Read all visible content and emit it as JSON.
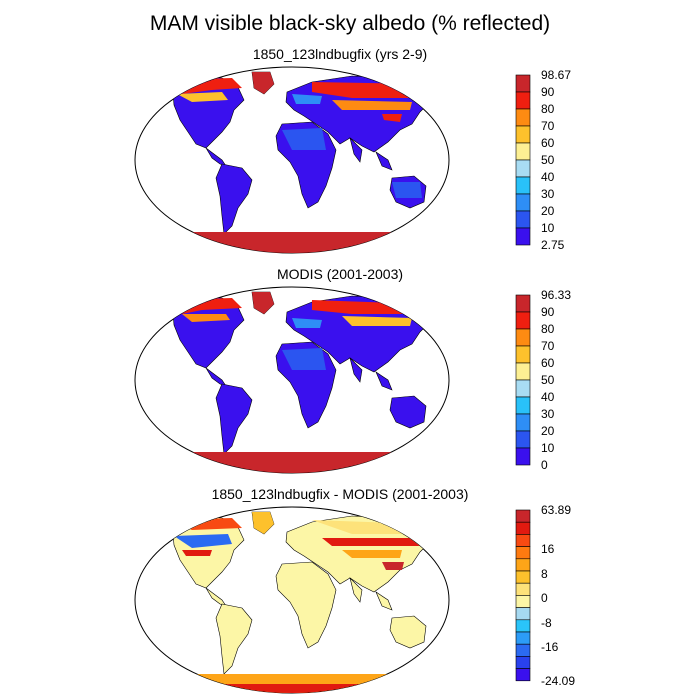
{
  "title": "MAM visible black-sky albedo (% reflected)",
  "colors": {
    "abs_scale": [
      "#3a10ee",
      "#2b55f0",
      "#2e8ef6",
      "#29c1f9",
      "#a8dcf3",
      "#fdf093",
      "#fdc12c",
      "#fe8b12",
      "#ef1f10",
      "#c8262b"
    ],
    "diff_scale": [
      "#3a10ee",
      "#2941ee",
      "#2b6af2",
      "#2c9cf7",
      "#2ac4f9",
      "#a6d9f1",
      "#fcf6a6",
      "#fde27a",
      "#fdc12c",
      "#fea518",
      "#fe7a10",
      "#f84a12",
      "#e11a10",
      "#c8262b"
    ],
    "land_background": "#3a10ee",
    "antarctic": "#d02a2a",
    "ocean": "#ffffff"
  },
  "panels": [
    {
      "title": "1850_123lndbugfix (yrs 2-9)",
      "colorbar_labels": [
        "98.67",
        "90",
        "80",
        "70",
        "60",
        "50",
        "40",
        "30",
        "20",
        "10",
        "2.75"
      ]
    },
    {
      "title": "MODIS (2001-2003)",
      "colorbar_labels": [
        "96.33",
        "90",
        "80",
        "70",
        "60",
        "50",
        "40",
        "30",
        "20",
        "10",
        "0"
      ]
    },
    {
      "title": "1850_123lndbugfix - MODIS (2001-2003)",
      "colorbar_labels": [
        "63.89",
        "16",
        "8",
        "0",
        "-8",
        "-16",
        "-24.09"
      ]
    }
  ]
}
